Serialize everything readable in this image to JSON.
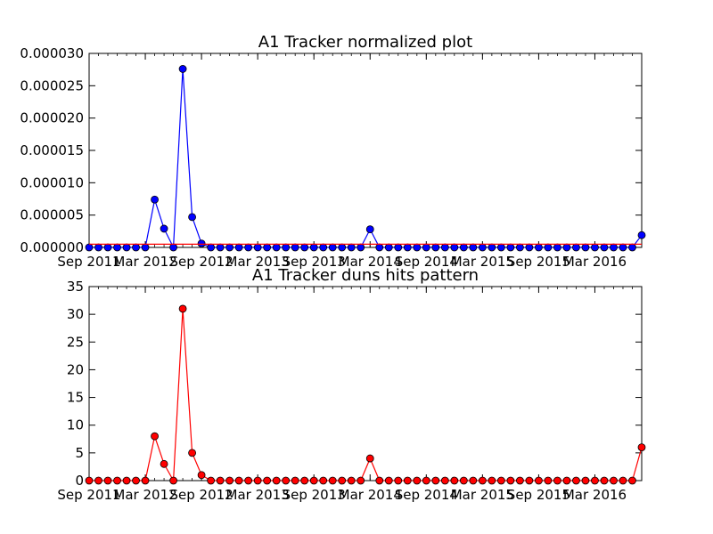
{
  "chart_data": [
    {
      "type": "line",
      "title": "A1 Tracker normalized plot",
      "xlabel": "",
      "ylabel": "",
      "x_tick_labels": [
        "Sep 2011",
        "Mar 2012",
        "Sep 2012",
        "Mar 2013",
        "Sep 2013",
        "Mar 2014",
        "Sep 2014",
        "Mar 2015",
        "Sep 2015",
        "Mar 2016"
      ],
      "ylim": [
        0,
        3e-05
      ],
      "y_ticks": [
        0,
        5e-06,
        1e-05,
        1.5e-05,
        2e-05,
        2.5e-05,
        3e-05
      ],
      "y_tick_labels": [
        "0.000000",
        "0.000005",
        "0.000010",
        "0.000015",
        "0.000020",
        "0.000025",
        "0.000030"
      ],
      "grid": false,
      "series": [
        {
          "color": "#0000ff",
          "values": [
            0,
            0,
            0,
            0,
            0,
            0,
            0,
            7.4e-06,
            2.9e-06,
            0,
            2.76e-05,
            4.7e-06,
            6e-07,
            0,
            0,
            0,
            0,
            0,
            0,
            0,
            0,
            0,
            0,
            0,
            0,
            0,
            0,
            0,
            0,
            0,
            2.8e-06,
            0,
            0,
            0,
            0,
            0,
            0,
            0,
            0,
            0,
            0,
            0,
            0,
            0,
            0,
            0,
            0,
            0,
            0,
            0,
            0,
            0,
            0,
            0,
            0,
            0,
            0,
            0,
            0,
            1.9e-06
          ]
        },
        {
          "color": "#ff0000",
          "values": [
            5e-07,
            5e-07
          ]
        }
      ]
    },
    {
      "type": "line",
      "title": "A1 Tracker duns hits pattern",
      "xlabel": "",
      "ylabel": "",
      "x_tick_labels": [
        "Sep 2011",
        "Mar 2012",
        "Sep 2012",
        "Mar 2013",
        "Sep 2013",
        "Mar 2014",
        "Sep 2014",
        "Mar 2015",
        "Sep 2015",
        "Mar 2016"
      ],
      "ylim": [
        0,
        35
      ],
      "y_ticks": [
        0,
        5,
        10,
        15,
        20,
        25,
        30,
        35
      ],
      "y_tick_labels": [
        "0",
        "5",
        "10",
        "15",
        "20",
        "25",
        "30",
        "35"
      ],
      "grid": false,
      "series": [
        {
          "color": "#ff0000",
          "values": [
            0,
            0,
            0,
            0,
            0,
            0,
            0,
            8,
            3,
            0,
            31,
            5,
            1,
            0,
            0,
            0,
            0,
            0,
            0,
            0,
            0,
            0,
            0,
            0,
            0,
            0,
            0,
            0,
            0,
            0,
            4,
            0,
            0,
            0,
            0,
            0,
            0,
            0,
            0,
            0,
            0,
            0,
            0,
            0,
            0,
            0,
            0,
            0,
            0,
            0,
            0,
            0,
            0,
            0,
            0,
            0,
            0,
            0,
            0,
            6
          ]
        }
      ]
    }
  ]
}
